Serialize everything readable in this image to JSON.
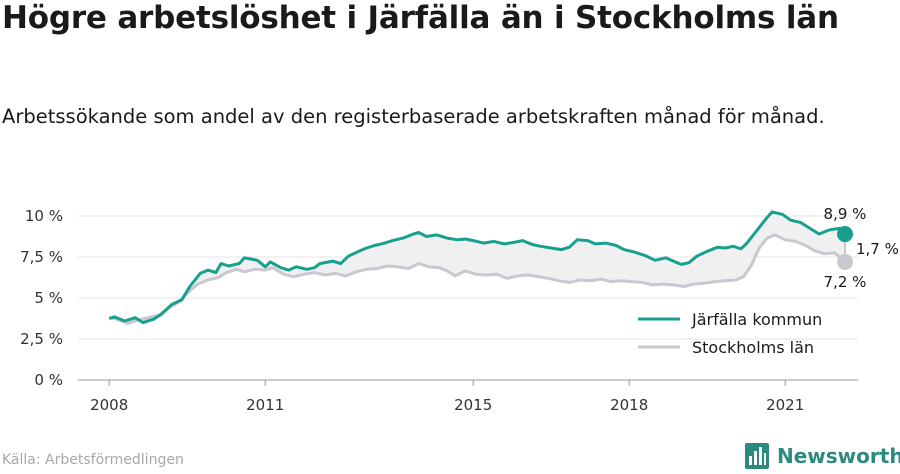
{
  "title": "Högre arbetslöshet i Järfälla än i Stockholms län",
  "subtitle": "Arbetssökande som andel av den registerbaserade arbetskraften månad för månad.",
  "source": "Källa: Arbetsförmedlingen",
  "logo": {
    "text": "Newsworthy",
    "icon": "newsworthy-logo-icon"
  },
  "chart_data": {
    "type": "line",
    "ylim": [
      0,
      10.5
    ],
    "xlim": [
      2007.4,
      2022.4
    ],
    "y_ticks": [
      {
        "value": 0,
        "label": "0 %"
      },
      {
        "value": 2.5,
        "label": "2,5 %"
      },
      {
        "value": 5,
        "label": "5 %"
      },
      {
        "value": 7.5,
        "label": "7,5 %"
      },
      {
        "value": 10,
        "label": "10 %"
      }
    ],
    "x_ticks": [
      {
        "value": 2008,
        "label": "2008"
      },
      {
        "value": 2011,
        "label": "2011"
      },
      {
        "value": 2015,
        "label": "2015"
      },
      {
        "value": 2018,
        "label": "2018"
      },
      {
        "value": 2021,
        "label": "2021"
      }
    ],
    "grid": true,
    "legend_position": "bottom-right",
    "colors": {
      "jarfalla": "#17a08e",
      "stockholm": "#c8c8d0",
      "band": "#f0f0f0"
    },
    "annotations": {
      "last_jarfalla": "8,9 %",
      "last_stockholm": "7,2 %",
      "gap": "1,7 %"
    },
    "series": [
      {
        "name": "Järfälla kommun",
        "key": "jarfalla",
        "points": [
          [
            2008.0,
            3.75
          ],
          [
            2008.1,
            3.85
          ],
          [
            2008.3,
            3.6
          ],
          [
            2008.5,
            3.8
          ],
          [
            2008.65,
            3.5
          ],
          [
            2008.85,
            3.7
          ],
          [
            2009.0,
            4.0
          ],
          [
            2009.2,
            4.6
          ],
          [
            2009.4,
            4.9
          ],
          [
            2009.55,
            5.7
          ],
          [
            2009.75,
            6.5
          ],
          [
            2009.9,
            6.7
          ],
          [
            2010.05,
            6.55
          ],
          [
            2010.15,
            7.1
          ],
          [
            2010.3,
            6.95
          ],
          [
            2010.5,
            7.1
          ],
          [
            2010.6,
            7.45
          ],
          [
            2010.85,
            7.3
          ],
          [
            2011.0,
            6.9
          ],
          [
            2011.1,
            7.2
          ],
          [
            2011.3,
            6.85
          ],
          [
            2011.45,
            6.7
          ],
          [
            2011.6,
            6.9
          ],
          [
            2011.8,
            6.75
          ],
          [
            2011.95,
            6.85
          ],
          [
            2012.05,
            7.1
          ],
          [
            2012.3,
            7.25
          ],
          [
            2012.45,
            7.1
          ],
          [
            2012.6,
            7.55
          ],
          [
            2012.8,
            7.85
          ],
          [
            2012.95,
            8.05
          ],
          [
            2013.1,
            8.2
          ],
          [
            2013.3,
            8.35
          ],
          [
            2013.45,
            8.5
          ],
          [
            2013.65,
            8.65
          ],
          [
            2013.85,
            8.9
          ],
          [
            2013.95,
            9.0
          ],
          [
            2014.1,
            8.75
          ],
          [
            2014.3,
            8.85
          ],
          [
            2014.5,
            8.65
          ],
          [
            2014.7,
            8.55
          ],
          [
            2014.85,
            8.6
          ],
          [
            2015.0,
            8.5
          ],
          [
            2015.2,
            8.35
          ],
          [
            2015.4,
            8.45
          ],
          [
            2015.6,
            8.3
          ],
          [
            2015.8,
            8.4
          ],
          [
            2015.95,
            8.5
          ],
          [
            2016.15,
            8.25
          ],
          [
            2016.3,
            8.15
          ],
          [
            2016.5,
            8.05
          ],
          [
            2016.7,
            7.95
          ],
          [
            2016.85,
            8.1
          ],
          [
            2017.0,
            8.55
          ],
          [
            2017.2,
            8.5
          ],
          [
            2017.35,
            8.3
          ],
          [
            2017.55,
            8.35
          ],
          [
            2017.75,
            8.2
          ],
          [
            2017.9,
            7.95
          ],
          [
            2018.1,
            7.8
          ],
          [
            2018.3,
            7.6
          ],
          [
            2018.5,
            7.3
          ],
          [
            2018.7,
            7.45
          ],
          [
            2018.85,
            7.25
          ],
          [
            2019.0,
            7.05
          ],
          [
            2019.15,
            7.15
          ],
          [
            2019.3,
            7.55
          ],
          [
            2019.5,
            7.85
          ],
          [
            2019.7,
            8.1
          ],
          [
            2019.85,
            8.05
          ],
          [
            2020.0,
            8.15
          ],
          [
            2020.15,
            8.0
          ],
          [
            2020.25,
            8.3
          ],
          [
            2020.45,
            9.1
          ],
          [
            2020.65,
            9.9
          ],
          [
            2020.75,
            10.25
          ],
          [
            2020.95,
            10.1
          ],
          [
            2021.1,
            9.75
          ],
          [
            2021.3,
            9.6
          ],
          [
            2021.5,
            9.2
          ],
          [
            2021.65,
            8.9
          ],
          [
            2021.85,
            9.15
          ],
          [
            2022.05,
            9.25
          ],
          [
            2022.15,
            8.9
          ]
        ]
      },
      {
        "name": "Stockholms län",
        "key": "stockholm",
        "points": [
          [
            2008.0,
            3.8
          ],
          [
            2008.15,
            3.7
          ],
          [
            2008.35,
            3.45
          ],
          [
            2008.55,
            3.65
          ],
          [
            2008.75,
            3.8
          ],
          [
            2008.95,
            3.95
          ],
          [
            2009.15,
            4.4
          ],
          [
            2009.35,
            4.8
          ],
          [
            2009.5,
            5.3
          ],
          [
            2009.7,
            5.85
          ],
          [
            2009.9,
            6.1
          ],
          [
            2010.1,
            6.25
          ],
          [
            2010.25,
            6.55
          ],
          [
            2010.45,
            6.75
          ],
          [
            2010.6,
            6.6
          ],
          [
            2010.8,
            6.75
          ],
          [
            2011.0,
            6.7
          ],
          [
            2011.15,
            6.85
          ],
          [
            2011.35,
            6.45
          ],
          [
            2011.55,
            6.3
          ],
          [
            2011.75,
            6.45
          ],
          [
            2011.95,
            6.55
          ],
          [
            2012.15,
            6.4
          ],
          [
            2012.35,
            6.5
          ],
          [
            2012.55,
            6.35
          ],
          [
            2012.75,
            6.6
          ],
          [
            2012.95,
            6.75
          ],
          [
            2013.15,
            6.8
          ],
          [
            2013.35,
            6.95
          ],
          [
            2013.55,
            6.9
          ],
          [
            2013.75,
            6.8
          ],
          [
            2013.95,
            7.1
          ],
          [
            2014.15,
            6.9
          ],
          [
            2014.35,
            6.85
          ],
          [
            2014.5,
            6.65
          ],
          [
            2014.65,
            6.35
          ],
          [
            2014.85,
            6.65
          ],
          [
            2015.05,
            6.45
          ],
          [
            2015.25,
            6.4
          ],
          [
            2015.45,
            6.45
          ],
          [
            2015.65,
            6.2
          ],
          [
            2015.85,
            6.35
          ],
          [
            2016.05,
            6.4
          ],
          [
            2016.25,
            6.3
          ],
          [
            2016.45,
            6.2
          ],
          [
            2016.65,
            6.05
          ],
          [
            2016.85,
            5.95
          ],
          [
            2017.05,
            6.1
          ],
          [
            2017.25,
            6.05
          ],
          [
            2017.45,
            6.15
          ],
          [
            2017.65,
            6.0
          ],
          [
            2017.85,
            6.05
          ],
          [
            2018.05,
            6.0
          ],
          [
            2018.25,
            5.95
          ],
          [
            2018.45,
            5.8
          ],
          [
            2018.65,
            5.85
          ],
          [
            2018.85,
            5.8
          ],
          [
            2019.05,
            5.7
          ],
          [
            2019.25,
            5.85
          ],
          [
            2019.45,
            5.9
          ],
          [
            2019.65,
            6.0
          ],
          [
            2019.85,
            6.05
          ],
          [
            2020.05,
            6.1
          ],
          [
            2020.2,
            6.3
          ],
          [
            2020.35,
            7.0
          ],
          [
            2020.5,
            8.05
          ],
          [
            2020.65,
            8.65
          ],
          [
            2020.8,
            8.85
          ],
          [
            2021.0,
            8.55
          ],
          [
            2021.2,
            8.45
          ],
          [
            2021.4,
            8.2
          ],
          [
            2021.55,
            7.9
          ],
          [
            2021.75,
            7.7
          ],
          [
            2021.95,
            7.75
          ],
          [
            2022.15,
            7.2
          ]
        ]
      }
    ]
  }
}
